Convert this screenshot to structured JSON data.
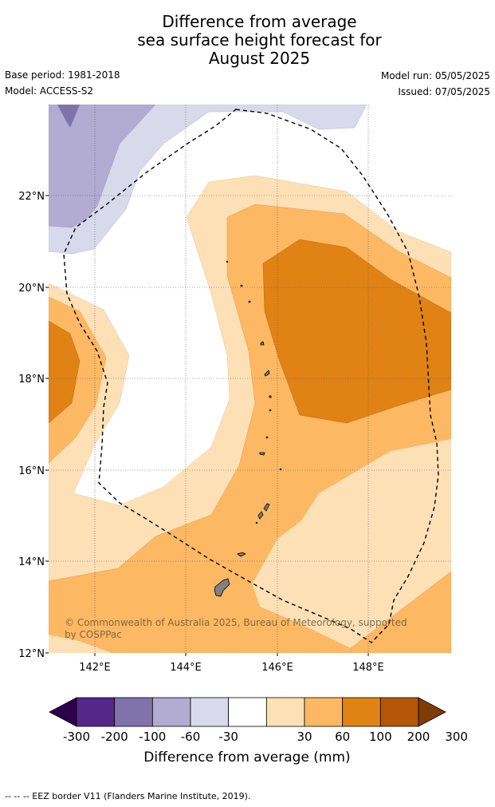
{
  "title": {
    "line1": "Difference from average",
    "line2": "sea surface height forecast for",
    "line3": "August 2025"
  },
  "meta": {
    "base_period": "Base period: 1981-2018",
    "model": "Model: ACCESS-S2",
    "model_run": "Model run: 05/05/2025",
    "issued": "Issued: 07/05/2025"
  },
  "map": {
    "lon_labels": [
      "142°E",
      "144°E",
      "146°E",
      "148°E"
    ],
    "lat_labels": [
      "22°N",
      "20°N",
      "18°N",
      "16°N",
      "14°N",
      "12°N"
    ],
    "lon_range": [
      141.0,
      149.8
    ],
    "lat_range": [
      12.0,
      24.0
    ],
    "copyright_line1": "© Commonwealth of Australia 2025, Bureau of Meteorology, supported",
    "copyright_line2": "by COSPPac"
  },
  "colorbar": {
    "label": "Difference from average (mm)",
    "ticks": [
      "-300",
      "-200",
      "-100",
      "-60",
      "-30",
      "30",
      "60",
      "100",
      "200",
      "300"
    ],
    "colors": {
      "below_-300": "#2d004b",
      "-300_-200": "#542788",
      "-200_-100": "#8073ac",
      "-100_-60": "#b2abd2",
      "-60_-30": "#d8daeb",
      "-30_30": "#ffffff",
      "30_60": "#fee0b6",
      "60_100": "#fdb863",
      "100_200": "#e08214",
      "200_300": "#b35806",
      "above_300": "#7f3b08"
    }
  },
  "footnote": "--  --  -- EEZ border V11 (Flanders Marine Institute, 2019)."
}
